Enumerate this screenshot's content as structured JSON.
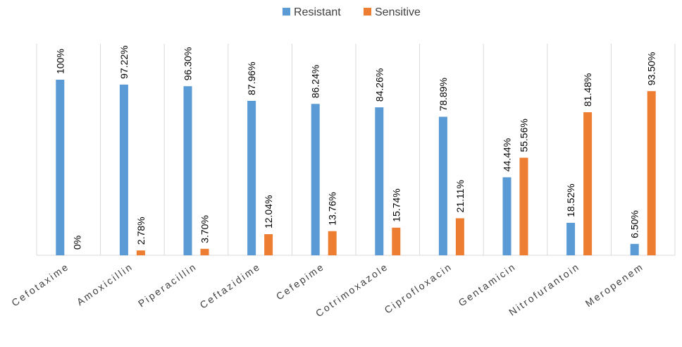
{
  "chart_data": {
    "type": "bar",
    "title": "",
    "xlabel": "",
    "ylabel": "",
    "ylim": [
      0,
      100
    ],
    "grid": "vertical category separators",
    "legend_position": "top-center",
    "categories": [
      "Cefotaxime",
      "Amoxicillin",
      "Piperacillin",
      "Ceftazidime",
      "Cefepime",
      "Cotrimoxazole",
      "Ciprofloxacin",
      "Gentamicin",
      "Nitrofurantoin",
      "Meropenem"
    ],
    "series": [
      {
        "name": "Resistant",
        "color": "#5B9BD5",
        "values": [
          100,
          97.22,
          96.3,
          87.96,
          86.24,
          84.26,
          78.89,
          44.44,
          18.52,
          6.5
        ],
        "labels": [
          "100%",
          "97.22%",
          "96.30%",
          "87.96%",
          "86.24%",
          "84.26%",
          "78.89%",
          "44.44%",
          "18.52%",
          "6.50%"
        ]
      },
      {
        "name": "Sensitive",
        "color": "#ED7D31",
        "values": [
          0,
          2.78,
          3.7,
          12.04,
          13.76,
          15.74,
          21.11,
          55.56,
          81.48,
          93.5
        ],
        "labels": [
          "0%",
          "2.78%",
          "3.70%",
          "12.04%",
          "13.76%",
          "15.74%",
          "21.11%",
          "55.56%",
          "81.48%",
          "93.50%"
        ]
      }
    ]
  }
}
